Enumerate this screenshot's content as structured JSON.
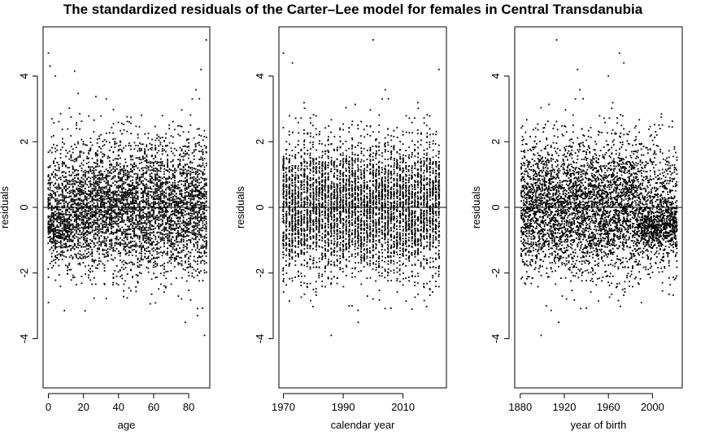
{
  "chart_data": {
    "title": "The standardized residuals of the Carter–Lee model for females in Central Transdanubia",
    "panels": [
      {
        "id": "age",
        "type": "scatter",
        "xlabel": "age",
        "ylabel": "residuals",
        "xlim": [
          -3,
          92
        ],
        "ylim": [
          -5.5,
          5.5
        ],
        "xticks": [
          0,
          20,
          40,
          60,
          80
        ],
        "xtick_labels": [
          "0",
          "20",
          "40",
          "60",
          "80"
        ],
        "yticks": [
          -4,
          -2,
          0,
          2,
          4
        ],
        "ytick_labels": [
          "-4",
          "-2",
          "0",
          "2",
          "4"
        ],
        "hline": 0,
        "x_domain": [
          0,
          90
        ],
        "x_step": 1,
        "points_per_x": 53,
        "sd": 1.0,
        "band": {
          "x_from": 0,
          "x_to": 12,
          "center": -0.7,
          "sd": 0.3,
          "share": 0.35
        },
        "outliers": [
          [
            0,
            4.7
          ],
          [
            1,
            4.3
          ],
          [
            4,
            4.0
          ],
          [
            15,
            4.15
          ],
          [
            90,
            5.1
          ],
          [
            87,
            4.2
          ],
          [
            89,
            -3.9
          ],
          [
            78,
            -3.5
          ],
          [
            85,
            -3.3
          ],
          [
            0,
            -2.9
          ]
        ]
      },
      {
        "id": "year",
        "type": "scatter",
        "xlabel": "calendar year",
        "ylabel": "residuals",
        "xlim": [
          1968.5,
          2024.5
        ],
        "ylim": [
          -5.5,
          5.5
        ],
        "xticks": [
          1970,
          1990,
          2010
        ],
        "xtick_labels": [
          "1970",
          "1990",
          "2010"
        ],
        "yticks": [
          -4,
          -2,
          0,
          2,
          4
        ],
        "ytick_labels": [
          "-4",
          "-2",
          "0",
          "2",
          "4"
        ],
        "hline": 0,
        "x_domain": [
          1970,
          2022
        ],
        "x_step": 1,
        "points_per_x": 91,
        "sd": 1.0,
        "band": null,
        "outliers": [
          [
            1970,
            4.7
          ],
          [
            1973,
            4.4
          ],
          [
            2000,
            5.1
          ],
          [
            2022,
            4.2
          ],
          [
            1986,
            -3.9
          ],
          [
            1995,
            -3.5
          ],
          [
            2013,
            -3.1
          ],
          [
            1992,
            -3.0
          ]
        ]
      },
      {
        "id": "cohort",
        "type": "scatter",
        "xlabel": "year of birth",
        "ylabel": "residuals",
        "xlim": [
          1875,
          2027
        ],
        "ylim": [
          -5.5,
          5.5
        ],
        "xticks": [
          1880,
          1920,
          1960,
          2000
        ],
        "xtick_labels": [
          "1880",
          "1920",
          "1960",
          "2000"
        ],
        "yticks": [
          -4,
          -2,
          0,
          2,
          4
        ],
        "ytick_labels": [
          "-4",
          "-2",
          "0",
          "2",
          "4"
        ],
        "hline": 0,
        "x_domain": [
          1881,
          2022
        ],
        "x_step": 1,
        "points_per_x": 34,
        "sd": 1.0,
        "band": {
          "x_from": 1990,
          "x_to": 2022,
          "center": -0.6,
          "sd": 0.3,
          "share": 0.4
        },
        "outliers": [
          [
            1913,
            5.1
          ],
          [
            1970,
            4.7
          ],
          [
            1974,
            4.4
          ],
          [
            1932,
            4.2
          ],
          [
            1960,
            4.0
          ],
          [
            1899,
            -3.9
          ],
          [
            1915,
            -3.5
          ],
          [
            2020,
            -2.2
          ],
          [
            1990,
            -2.9
          ]
        ]
      }
    ]
  }
}
